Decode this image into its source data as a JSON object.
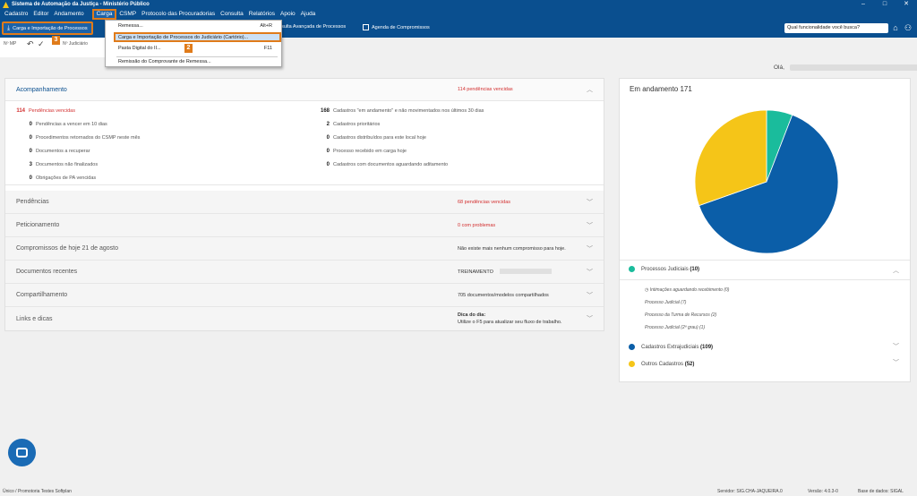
{
  "window": {
    "title": "Sistema de Automação da Justiça - Ministério Público",
    "controls": [
      "–",
      "□",
      "✕"
    ]
  },
  "menu": [
    "Cadastro",
    "Editor",
    "Andamento",
    "Carga",
    "CSMP",
    "Protocolo das Procuradorias",
    "Consulta",
    "Relatórios",
    "Apoio",
    "Ajuda"
  ],
  "toolbar": {
    "carga_label": "Carga e Importação de Processos",
    "consulta_label": "Consulta Avançada de Processos",
    "agenda_label": "Agenda de Compromissos",
    "search_placeholder": "Qual funcionalidade você busca?"
  },
  "substrip": {
    "nmp": "Nº MP",
    "njudicial": "Nº Judiciário"
  },
  "dropdown": {
    "items": [
      {
        "label": "Remessa...",
        "key": "Alt+R"
      },
      {
        "label": "Carga e Importação de Processos do Judiciário (Cartório)...",
        "key": ""
      },
      {
        "label": "Pasta Digital do II...",
        "key": "F11"
      },
      {
        "label": "Remissão do Comprovante de Remessa...",
        "key": ""
      }
    ]
  },
  "badges": [
    "1",
    "2",
    "3"
  ],
  "greeting": "Olá,",
  "acompanhamento": {
    "title": "Acompanhamento",
    "summary": "114 pendências vencidas",
    "left": [
      {
        "n": "114",
        "text": "Pendências vencidas",
        "red": true
      },
      {
        "n": "0",
        "text": "Pendências a vencer em 10 dias"
      },
      {
        "n": "0",
        "text": "Procedimentos retornados do CSMP neste mês"
      },
      {
        "n": "0",
        "text": "Documentos a recuperar"
      },
      {
        "n": "3",
        "text": "Documentos não finalizados"
      },
      {
        "n": "0",
        "text": "Obrigações de PA vencidas"
      }
    ],
    "right": [
      {
        "n": "168",
        "text": "Cadastros \"em andamento\" e não movimentados nos últimos 30 dias"
      },
      {
        "n": "2",
        "text": "Cadastros prioritários"
      },
      {
        "n": "0",
        "text": "Cadastros distribuídos para este local hoje"
      },
      {
        "n": "0",
        "text": "Processo recebido em carga hoje"
      },
      {
        "n": "0",
        "text": "Cadastros com documentos aguardando aditamento"
      }
    ]
  },
  "sections": [
    {
      "title": "Pendências",
      "info": "68 pendências vencidas",
      "red": true
    },
    {
      "title": "Peticionamento",
      "info": "0 com problemas",
      "red": true
    },
    {
      "title": "Compromissos de hoje 21 de agosto",
      "info": "Não existe mais nenhum compromisso para hoje."
    },
    {
      "title": "Documentos recentes",
      "info": "TREINAMENTO"
    },
    {
      "title": "Compartilhamento",
      "info": "705 documentos/modelos compartilhados"
    },
    {
      "title": "Links e dicas",
      "info": "Dica do dia:",
      "info2": "Utilize o F5 para atualizar seu fluxo de trabalho."
    }
  ],
  "chart_data": {
    "type": "pie",
    "title": "Em andamento 171",
    "total": 171,
    "series": [
      {
        "name": "Processos Judiciais",
        "value": 10,
        "color": "#1abc9c"
      },
      {
        "name": "Cadastros Extrajudiciais",
        "value": 109,
        "color": "#0b5ea8"
      },
      {
        "name": "Outros Cadastros",
        "value": 52,
        "color": "#f5c518"
      }
    ]
  },
  "legend": {
    "processos": {
      "label": "Processos Judiciais",
      "count": "(10)"
    },
    "processos_sub": [
      "Intimações aguardando recebimento (0)",
      "Processo Judicial (7)",
      "Processo da Turma de Recursos (2)",
      "Processo Judicial (2º grau) (1)"
    ],
    "extrajudiciais": {
      "label": "Cadastros Extrajudiciais",
      "count": "(109)"
    },
    "outros": {
      "label": "Outros Cadastros",
      "count": "(52)"
    }
  },
  "status": {
    "left": "Único / Promotoria Testes Softplan",
    "servidor": "Servidor: SIG.CHA-JAQUEIRA.0",
    "versao": "Versão: 4.0.3-0",
    "base": "Base de dados: SIGAL"
  }
}
